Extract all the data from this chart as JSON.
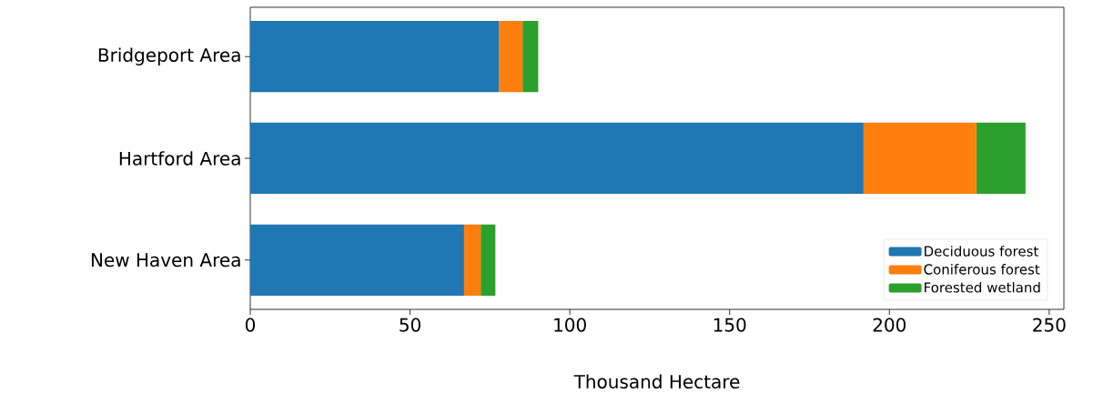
{
  "chart_data": {
    "type": "bar",
    "orientation": "horizontal",
    "stacked": true,
    "categories": [
      "Bridgeport Area",
      "Hartford Area",
      "New Haven Area"
    ],
    "series": [
      {
        "name": "Deciduous forest",
        "color": "#1f77b4",
        "values": [
          77.8,
          191.9,
          66.9
        ]
      },
      {
        "name": "Coniferous forest",
        "color": "#ff7f0e",
        "values": [
          7.4,
          35.3,
          5.2
        ]
      },
      {
        "name": "Forested wetland",
        "color": "#2ca02c",
        "values": [
          4.9,
          15.4,
          4.6
        ]
      }
    ],
    "xlabel": "Thousand Hectare",
    "xlim": [
      0,
      254.6
    ],
    "xticks": [
      0,
      50,
      100,
      150,
      200,
      250
    ],
    "legend": "bottom right",
    "grid": false
  }
}
